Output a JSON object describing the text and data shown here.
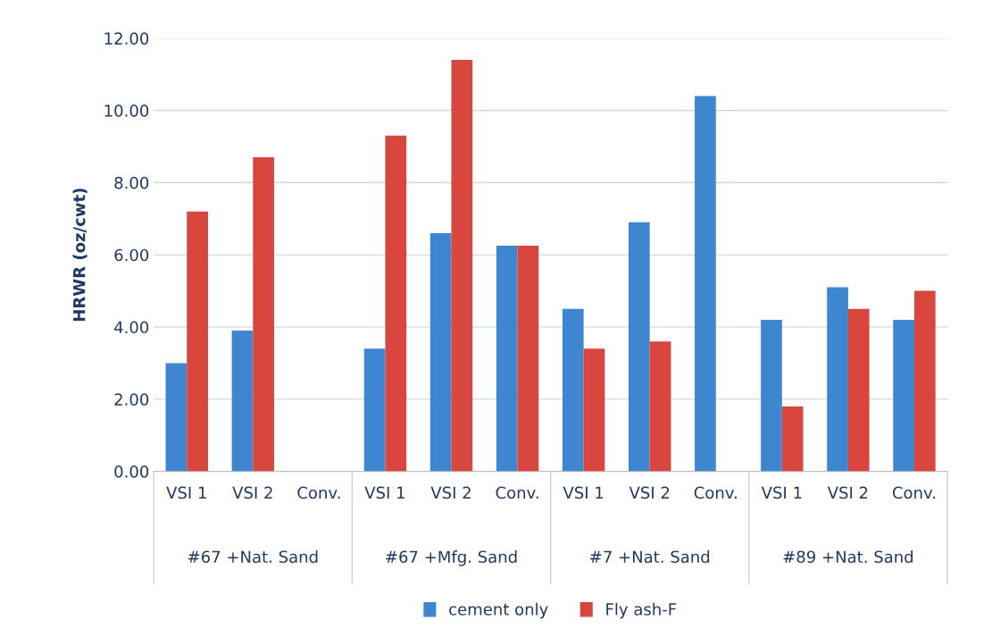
{
  "chart_data": {
    "type": "bar",
    "ylabel": "HRWR (oz/cwt)",
    "categories": [
      "VSI 1",
      "VSI 2",
      "Conv.",
      "VSI 1",
      "VSI 2",
      "Conv.",
      "VSI 1",
      "VSI 2",
      "Conv.",
      "VSI 1",
      "VSI 2",
      "Conv."
    ],
    "series": [
      {
        "name": "cement only",
        "color": "#3f86d0",
        "values": [
          3.0,
          3.9,
          0,
          3.4,
          6.6,
          6.25,
          4.5,
          6.9,
          10.4,
          4.2,
          5.1,
          4.2
        ]
      },
      {
        "name": "Fly ash-F",
        "color": "#d9463e",
        "values": [
          7.2,
          8.7,
          0,
          9.3,
          11.4,
          6.25,
          3.4,
          3.6,
          0,
          1.8,
          4.5,
          5.0
        ]
      }
    ],
    "annotations": [
      "#67 +Nat. Sand",
      "#67 +Mfg. Sand",
      "#7 +Nat. Sand",
      "#89 +Nat. Sand"
    ],
    "ylim": [
      0,
      12
    ],
    "yticks": [
      {
        "value": 0,
        "label": "0.00"
      },
      {
        "value": 2,
        "label": "2.00"
      },
      {
        "value": 4,
        "label": "4.00"
      },
      {
        "value": 6,
        "label": "6.00"
      },
      {
        "value": 8,
        "label": "8.00"
      },
      {
        "value": 10,
        "label": "10.00"
      },
      {
        "value": 12,
        "label": "12.00"
      }
    ],
    "grid": "y",
    "legend": "bottom"
  }
}
